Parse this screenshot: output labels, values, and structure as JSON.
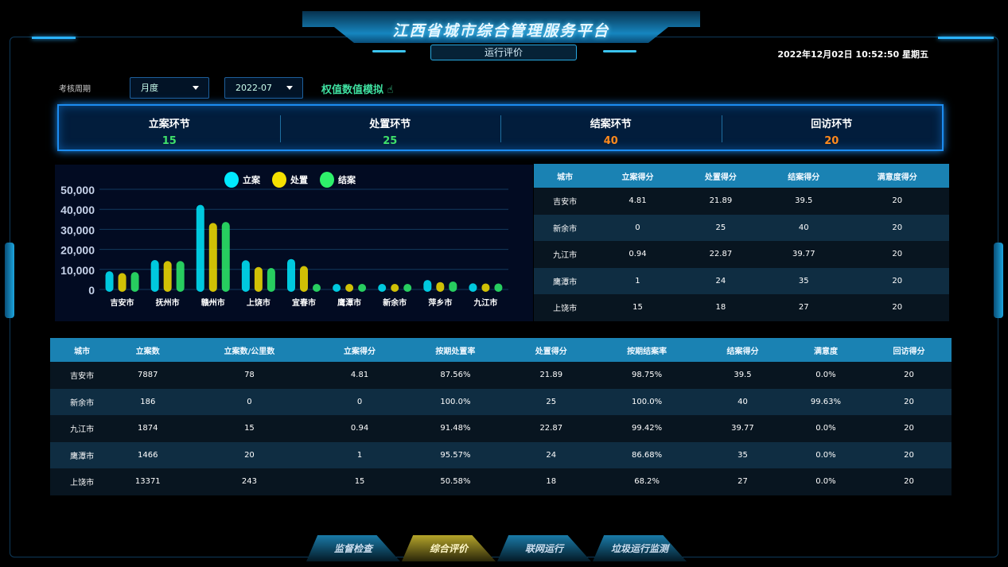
{
  "header": {
    "title": "江西省城市综合管理服务平台",
    "subtitle": "运行评价",
    "datetime": "2022年12月02日 10:52:50 星期五"
  },
  "filters": {
    "label": "考核周期",
    "period": "月度",
    "month": "2022-07",
    "simulate_label": "权值数值模拟"
  },
  "summary": [
    {
      "label": "立案环节",
      "value": "15",
      "color": "#3fe06a"
    },
    {
      "label": "处置环节",
      "value": "25",
      "color": "#3fe06a"
    },
    {
      "label": "结案环节",
      "value": "40",
      "color": "#ff8a1c"
    },
    {
      "label": "回访环节",
      "value": "20",
      "color": "#ff8a1c"
    }
  ],
  "chart_data": {
    "type": "bar",
    "legend_position": "top-center",
    "grid": true,
    "categories": [
      "吉安市",
      "抚州市",
      "赣州市",
      "上饶市",
      "宜春市",
      "鹰潭市",
      "新余市",
      "萍乡市",
      "九江市"
    ],
    "ylim": [
      0,
      50000
    ],
    "yticks": [
      "50,000",
      "40,000",
      "30,000",
      "20,000",
      "10,000",
      "0"
    ],
    "series": [
      {
        "name": "立案",
        "color": "#00eaff",
        "values": [
          7887,
          13500,
          41000,
          13371,
          14000,
          1466,
          186,
          3500,
          1874
        ]
      },
      {
        "name": "处置",
        "color": "#f5e000",
        "values": [
          7000,
          13000,
          32000,
          10000,
          10500,
          1500,
          200,
          2500,
          1800
        ]
      },
      {
        "name": "结案",
        "color": "#2ef06a",
        "values": [
          7500,
          13000,
          32500,
          9500,
          1500,
          1500,
          200,
          2800,
          1800
        ]
      }
    ]
  },
  "score_table": {
    "headers": [
      "城市",
      "立案得分",
      "处置得分",
      "结案得分",
      "满意度得分"
    ],
    "rows": [
      [
        "吉安市",
        "4.81",
        "21.89",
        "39.5",
        "20"
      ],
      [
        "新余市",
        "0",
        "25",
        "40",
        "20"
      ],
      [
        "九江市",
        "0.94",
        "22.87",
        "39.77",
        "20"
      ],
      [
        "鹰潭市",
        "1",
        "24",
        "35",
        "20"
      ],
      [
        "上饶市",
        "15",
        "18",
        "27",
        "20"
      ]
    ]
  },
  "detail_table": {
    "headers": [
      "城市",
      "立案数",
      "立案数/公里数",
      "立案得分",
      "按期处置率",
      "处置得分",
      "按期结案率",
      "结案得分",
      "满意度",
      "回访得分"
    ],
    "rows": [
      [
        "吉安市",
        "7887",
        "78",
        "4.81",
        "87.56%",
        "21.89",
        "98.75%",
        "39.5",
        "0.0%",
        "20"
      ],
      [
        "新余市",
        "186",
        "0",
        "0",
        "100.0%",
        "25",
        "100.0%",
        "40",
        "99.63%",
        "20"
      ],
      [
        "九江市",
        "1874",
        "15",
        "0.94",
        "91.48%",
        "22.87",
        "99.42%",
        "39.77",
        "0.0%",
        "20"
      ],
      [
        "鹰潭市",
        "1466",
        "20",
        "1",
        "95.57%",
        "24",
        "86.68%",
        "35",
        "0.0%",
        "20"
      ],
      [
        "上饶市",
        "13371",
        "243",
        "15",
        "50.58%",
        "18",
        "68.2%",
        "27",
        "0.0%",
        "20"
      ]
    ]
  },
  "tabs": [
    {
      "label": "监督检查",
      "active": false
    },
    {
      "label": "综合评价",
      "active": true
    },
    {
      "label": "联网运行",
      "active": false
    },
    {
      "label": "垃圾运行监测",
      "active": false
    }
  ]
}
